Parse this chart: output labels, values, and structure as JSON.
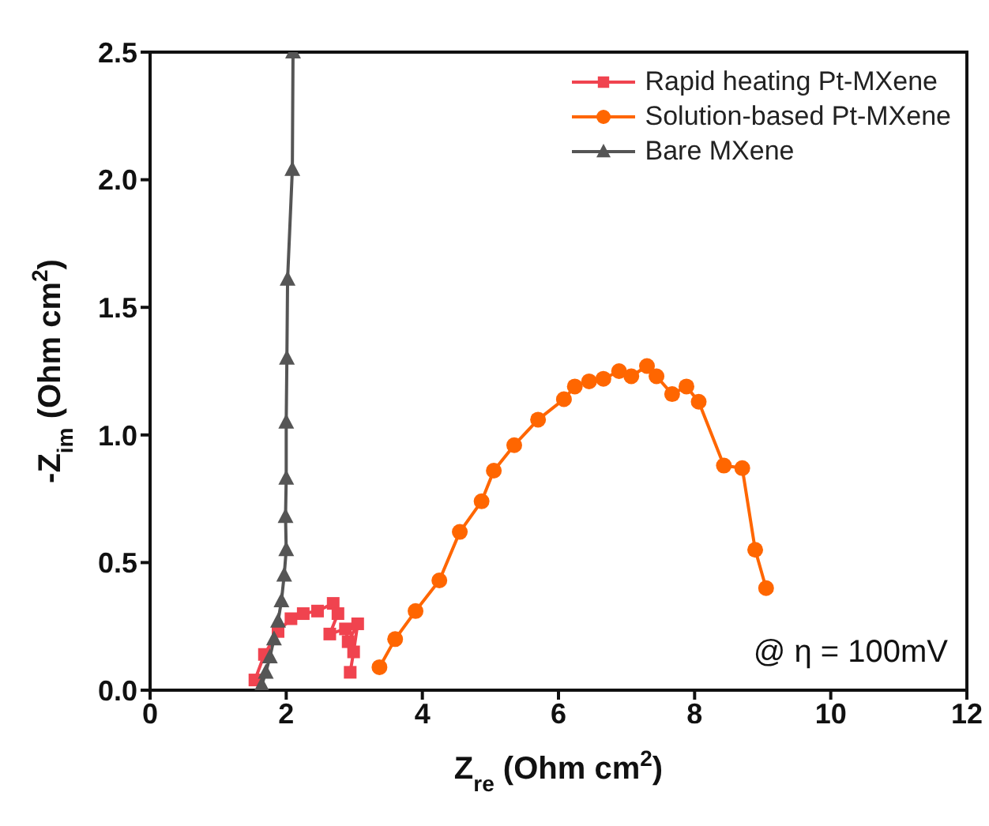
{
  "chart_data": {
    "type": "line",
    "xlabel": "Z$_{re}$ (Ohm cm$^{2}$)",
    "ylabel": "-Z$_{im}$ (Ohm cm$^{2}$)",
    "xlim": [
      0,
      12
    ],
    "xticks": [
      0,
      2,
      4,
      6,
      8,
      10,
      12
    ],
    "ylim": [
      0,
      2.5
    ],
    "yticks": [
      {
        "value": 0,
        "label": "0.0"
      },
      {
        "value": 0.5,
        "label": "0.5"
      },
      {
        "value": 1,
        "label": "1.0"
      },
      {
        "value": 1.5,
        "label": "1.5"
      },
      {
        "value": 2,
        "label": "2.0"
      },
      {
        "value": 2.5,
        "label": "2.5"
      }
    ],
    "legend": "top right",
    "line_style": "solid",
    "annotations": [
      "@ η = 100mV"
    ],
    "series": [
      {
        "name": "Rapid heating Pt-MXene",
        "color": "#f0434f",
        "marker": "square",
        "x": [
          1.54,
          1.68,
          1.88,
          2.07,
          2.25,
          2.46,
          2.69,
          2.76,
          2.64,
          2.87,
          2.91,
          3.05,
          2.99,
          2.94
        ],
        "values": [
          0.04,
          0.14,
          0.23,
          0.28,
          0.3,
          0.31,
          0.34,
          0.3,
          0.22,
          0.24,
          0.19,
          0.26,
          0.15,
          0.07
        ]
      },
      {
        "name": "Solution-based Pt-MXene",
        "color": "#ff6600",
        "marker": "circle",
        "x": [
          3.37,
          3.6,
          3.9,
          4.25,
          4.55,
          4.87,
          5.05,
          5.35,
          5.7,
          6.08,
          6.24,
          6.45,
          6.66,
          6.89,
          7.07,
          7.3,
          7.44,
          7.67,
          7.88,
          8.06,
          8.43,
          8.7,
          8.89,
          9.05
        ],
        "values": [
          0.09,
          0.2,
          0.31,
          0.43,
          0.62,
          0.74,
          0.86,
          0.96,
          1.06,
          1.14,
          1.19,
          1.21,
          1.22,
          1.25,
          1.23,
          1.27,
          1.23,
          1.16,
          1.19,
          1.13,
          0.88,
          0.87,
          0.55,
          0.4
        ]
      },
      {
        "name": "Bare MXene",
        "color": "#555555",
        "marker": "triangle",
        "x": [
          1.64,
          1.7,
          1.76,
          1.82,
          1.88,
          1.93,
          1.97,
          2.0,
          1.99,
          2.0,
          2.0,
          2.01,
          2.02,
          2.09,
          2.1
        ],
        "values": [
          0.02,
          0.07,
          0.13,
          0.2,
          0.27,
          0.35,
          0.45,
          0.55,
          0.68,
          0.83,
          1.05,
          1.3,
          1.61,
          2.04,
          2.5
        ]
      }
    ]
  }
}
